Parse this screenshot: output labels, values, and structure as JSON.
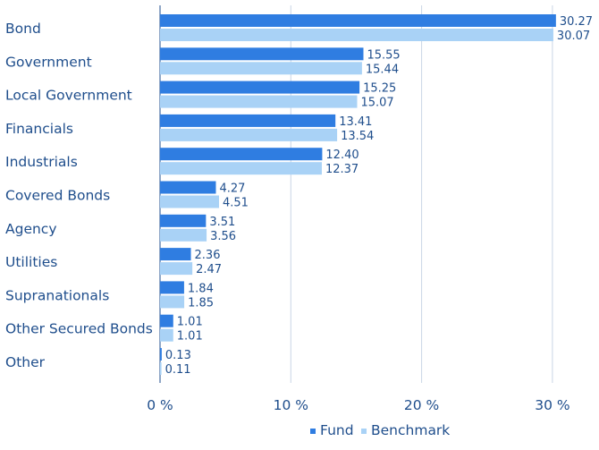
{
  "colors": {
    "fund": "#2f7de1",
    "benchmark": "#a9d2f6",
    "text": "#1f4e8c",
    "grid": "#c9d6e6",
    "axis": "#1f4e8c"
  },
  "chart_data": {
    "type": "bar",
    "orientation": "horizontal",
    "categories": [
      "Bond",
      "Government",
      "Local Government",
      "Financials",
      "Industrials",
      "Covered Bonds",
      "Agency",
      "Utilities",
      "Supranationals",
      "Other Secured Bonds",
      "Other"
    ],
    "series": [
      {
        "name": "Fund",
        "values": [
          30.27,
          15.55,
          15.25,
          13.41,
          12.4,
          4.27,
          3.51,
          2.36,
          1.84,
          1.01,
          0.13
        ]
      },
      {
        "name": "Benchmark",
        "values": [
          30.07,
          15.44,
          15.07,
          13.54,
          12.37,
          4.51,
          3.56,
          2.47,
          1.85,
          1.01,
          0.11
        ]
      }
    ],
    "value_labels": {
      "Fund": [
        "30.27",
        "15.55",
        "15.25",
        "13.41",
        "12.40",
        "4.27",
        "3.51",
        "2.36",
        "1.84",
        "1.01",
        "0.13"
      ],
      "Benchmark": [
        "30.07",
        "15.44",
        "15.07",
        "13.54",
        "12.37",
        "4.51",
        "3.56",
        "2.47",
        "1.85",
        "1.01",
        "0.11"
      ]
    },
    "xticks": [
      0,
      10,
      20,
      30
    ],
    "xtick_labels": [
      "0 %",
      "10 %",
      "20 %",
      "30 %"
    ],
    "xlim": [
      0,
      30.5
    ],
    "grid": true,
    "legend_position": "bottom-right",
    "legend": [
      "Fund",
      "Benchmark"
    ]
  }
}
